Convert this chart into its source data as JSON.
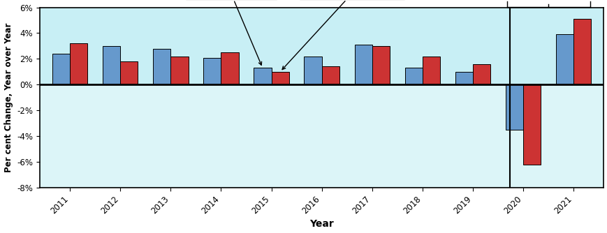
{
  "years": [
    2011,
    2012,
    2013,
    2014,
    2015,
    2016,
    2017,
    2018,
    2019,
    2020,
    2021
  ],
  "manitoba": [
    2.4,
    3.0,
    2.8,
    2.1,
    1.3,
    2.2,
    3.1,
    1.3,
    1.0,
    -3.5,
    3.9
  ],
  "canada": [
    3.2,
    1.8,
    2.2,
    2.5,
    1.0,
    1.4,
    3.0,
    2.2,
    1.6,
    -6.2,
    5.1
  ],
  "manitoba_color": "#6699CC",
  "canada_color": "#CC3333",
  "bg_color_top": "#C8EFF5",
  "bg_color_bottom": "#DCF5F8",
  "ylim": [
    -8,
    6
  ],
  "yticks": [
    -8,
    -6,
    -4,
    -2,
    0,
    2,
    4,
    6
  ],
  "ylabel": "Per cent Change, Year over Year",
  "xlabel": "Year",
  "divider_year": 2019,
  "bar_width": 0.35
}
